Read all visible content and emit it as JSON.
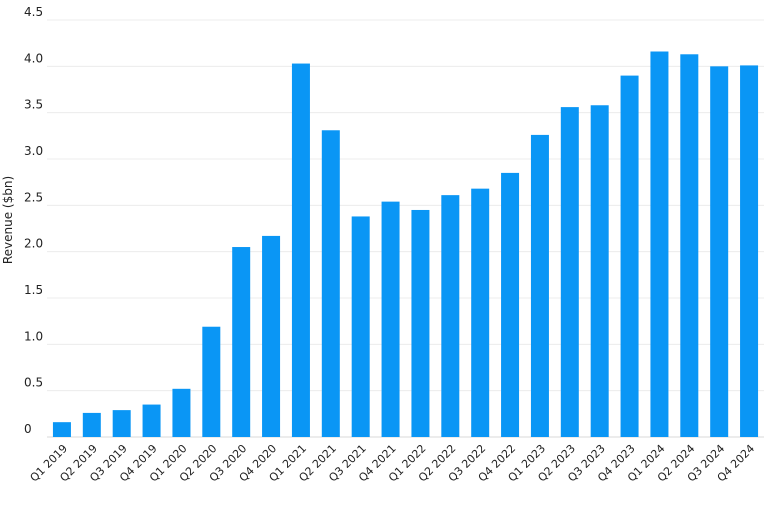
{
  "chart_data": {
    "type": "bar",
    "title": "",
    "xlabel": "",
    "ylabel": "Revenue ($bn)",
    "ylim": [
      0,
      4.5
    ],
    "yticks": [
      0,
      0.5,
      1.0,
      1.5,
      2.0,
      2.5,
      3.0,
      3.5,
      4.0,
      4.5
    ],
    "ytick_labels": [
      "0",
      "0.5",
      "1.0",
      "1.5",
      "2.0",
      "2.5",
      "3.0",
      "3.5",
      "4.0",
      "4.5"
    ],
    "grid": true,
    "legend": "none",
    "bar_color": "#0a96f5",
    "categories": [
      "Q1 2019",
      "Q2 2019",
      "Q3 2019",
      "Q4 2019",
      "Q1 2020",
      "Q2 2020",
      "Q3 2020",
      "Q4 2020",
      "Q1 2021",
      "Q2 2021",
      "Q3 2021",
      "Q4 2021",
      "Q1 2022",
      "Q2 2022",
      "Q3 2022",
      "Q4 2022",
      "Q1 2023",
      "Q2 2023",
      "Q3 2023",
      "Q4 2023",
      "Q1 2024",
      "Q2 2024",
      "Q3 2024",
      "Q4 2024"
    ],
    "values": [
      0.16,
      0.26,
      0.29,
      0.35,
      0.52,
      1.19,
      2.05,
      2.17,
      4.03,
      3.31,
      2.38,
      2.54,
      2.45,
      2.61,
      2.68,
      2.85,
      3.26,
      3.56,
      3.58,
      3.9,
      4.16,
      4.13,
      4.0,
      4.01
    ]
  }
}
